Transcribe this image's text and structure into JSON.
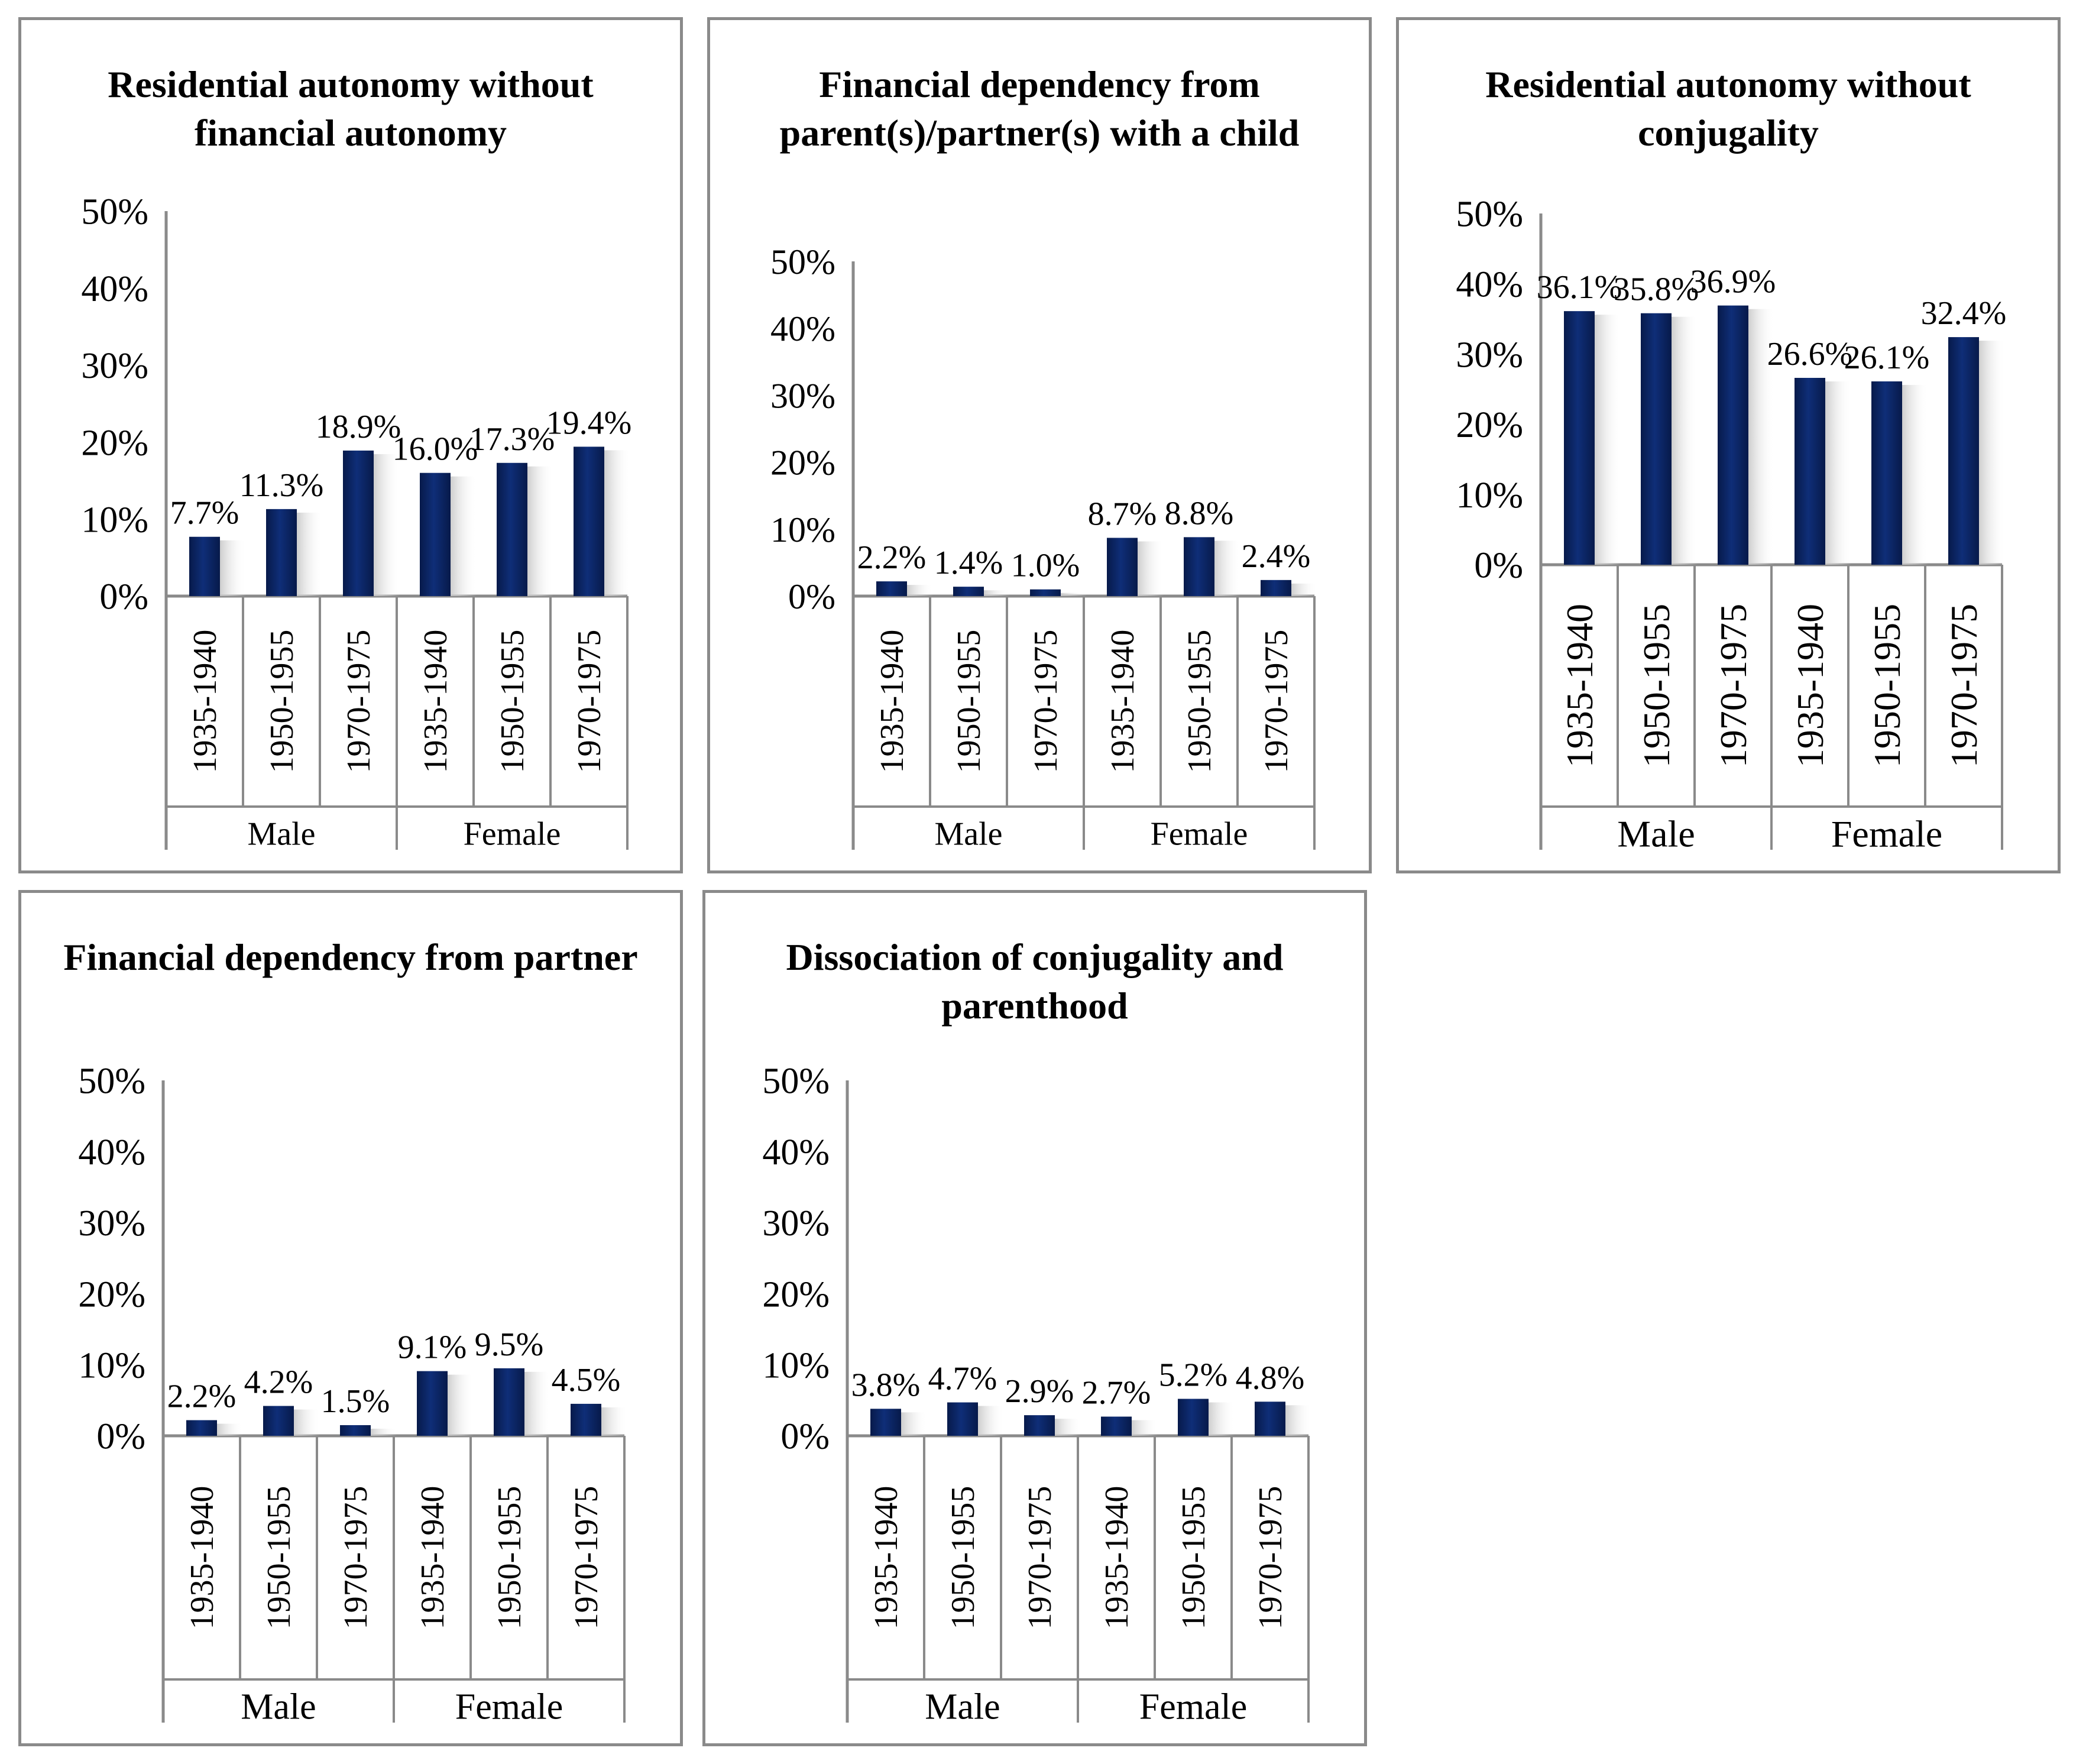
{
  "colors": {
    "bar": "#0f2e78",
    "bar_dark": "#071a4a",
    "axis": "#8a8a8a",
    "shadow": "#c8c8c8"
  },
  "chart_data": [
    {
      "type": "bar",
      "title": "Residential autonomy without financial autonomy",
      "groups": [
        "Male",
        "Female"
      ],
      "categories": [
        "1935-1940",
        "1950-1955",
        "1970-1975",
        "1935-1940",
        "1950-1955",
        "1970-1975"
      ],
      "values": [
        7.7,
        11.3,
        18.9,
        16.0,
        17.3,
        19.4
      ],
      "value_labels": [
        "7.7%",
        "11.3%",
        "18.9%",
        "16.0%",
        "17.3%",
        "19.4%"
      ],
      "y_ticks": [
        "0%",
        "10%",
        "20%",
        "30%",
        "40%",
        "50%"
      ],
      "ylim": [
        0,
        50
      ]
    },
    {
      "type": "bar",
      "title": "Financial dependency from parent(s)/partner(s) with a child",
      "groups": [
        "Male",
        "Female"
      ],
      "categories": [
        "1935-1940",
        "1950-1955",
        "1970-1975",
        "1935-1940",
        "1950-1955",
        "1970-1975"
      ],
      "values": [
        2.2,
        1.4,
        1.0,
        8.7,
        8.8,
        2.4
      ],
      "value_labels": [
        "2.2%",
        "1.4%",
        "1.0%",
        "8.7%",
        "8.8%",
        "2.4%"
      ],
      "y_ticks": [
        "0%",
        "10%",
        "20%",
        "30%",
        "40%",
        "50%"
      ],
      "ylim": [
        0,
        50
      ]
    },
    {
      "type": "bar",
      "title": "Residential autonomy without conjugality",
      "groups": [
        "Male",
        "Female"
      ],
      "categories": [
        "1935-1940",
        "1950-1955",
        "1970-1975",
        "1935-1940",
        "1950-1955",
        "1970-1975"
      ],
      "values": [
        36.1,
        35.8,
        36.9,
        26.6,
        26.1,
        32.4
      ],
      "value_labels": [
        "36.1%",
        "35.8%",
        "36.9%",
        "26.6%",
        "26.1%",
        "32.4%"
      ],
      "y_ticks": [
        "0%",
        "10%",
        "20%",
        "30%",
        "40%",
        "50%"
      ],
      "ylim": [
        0,
        50
      ]
    },
    {
      "type": "bar",
      "title": "Financial dependency from partner",
      "groups": [
        "Male",
        "Female"
      ],
      "categories": [
        "1935-1940",
        "1950-1955",
        "1970-1975",
        "1935-1940",
        "1950-1955",
        "1970-1975"
      ],
      "values": [
        2.2,
        4.2,
        1.5,
        9.1,
        9.5,
        4.5
      ],
      "value_labels": [
        "2.2%",
        "4.2%",
        "1.5%",
        "9.1%",
        "9.5%",
        "4.5%"
      ],
      "y_ticks": [
        "0%",
        "10%",
        "20%",
        "30%",
        "40%",
        "50%"
      ],
      "ylim": [
        0,
        50
      ]
    },
    {
      "type": "bar",
      "title": "Dissociation of conjugality and parenthood",
      "groups": [
        "Male",
        "Female"
      ],
      "categories": [
        "1935-1940",
        "1950-1955",
        "1970-1975",
        "1935-1940",
        "1950-1955",
        "1970-1975"
      ],
      "values": [
        3.8,
        4.7,
        2.9,
        2.7,
        5.2,
        4.8
      ],
      "value_labels": [
        "3.8%",
        "4.7%",
        "2.9%",
        "2.7%",
        "5.2%",
        "4.8%"
      ],
      "y_ticks": [
        "0%",
        "10%",
        "20%",
        "30%",
        "40%",
        "50%"
      ],
      "ylim": [
        0,
        50
      ]
    }
  ]
}
